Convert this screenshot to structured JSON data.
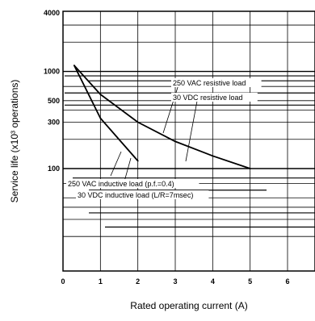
{
  "chart_data": {
    "type": "line",
    "title": "",
    "xlabel": "Rated operating current (A)",
    "ylabel": "Service life (x10³ operations)",
    "x_scale": "linear",
    "y_scale": "log",
    "xlim": [
      0,
      6
    ],
    "ylim": [
      10,
      4000
    ],
    "x_ticks": [
      "0",
      "1",
      "2",
      "3",
      "4",
      "5",
      "6"
    ],
    "y_ticks": [
      {
        "value": 4000,
        "label": "4000"
      },
      {
        "value": 1000,
        "label": "1000"
      },
      {
        "value": 500,
        "label": "500"
      },
      {
        "value": 300,
        "label": "300"
      },
      {
        "value": 100,
        "label": "100"
      }
    ],
    "grid": true,
    "series": [
      {
        "name": "250 VAC resistive load",
        "x": [
          0.3,
          1,
          2,
          3,
          4,
          5
        ],
        "y": [
          1150,
          580,
          300,
          190,
          135,
          100
        ]
      },
      {
        "name": "30 VDC resistive load",
        "x": [
          0.3,
          1,
          2,
          3,
          4,
          5
        ],
        "y": [
          1150,
          580,
          300,
          190,
          135,
          100
        ]
      },
      {
        "name": "250 VAC inductive load (p.f.=0.4)",
        "x": [
          0.3,
          1,
          2
        ],
        "y": [
          1150,
          330,
          120
        ]
      },
      {
        "name": "30 VDC inductive load (L/R=7msec)",
        "x": [
          0.3,
          1,
          2
        ],
        "y": [
          1150,
          330,
          120
        ]
      }
    ],
    "annotations": [
      {
        "text": "250 VAC resistive load",
        "series": "250 VAC resistive load"
      },
      {
        "text": "30 VDC resistive load",
        "series": "30 VDC resistive load"
      },
      {
        "text": "250 VAC inductive load (p.f.=0.4)",
        "series": "250 VAC inductive load (p.f.=0.4)"
      },
      {
        "text": "30 VDC inductive load (L/R=7msec)",
        "series": "30 VDC inductive load (L/R=7msec)"
      }
    ]
  }
}
